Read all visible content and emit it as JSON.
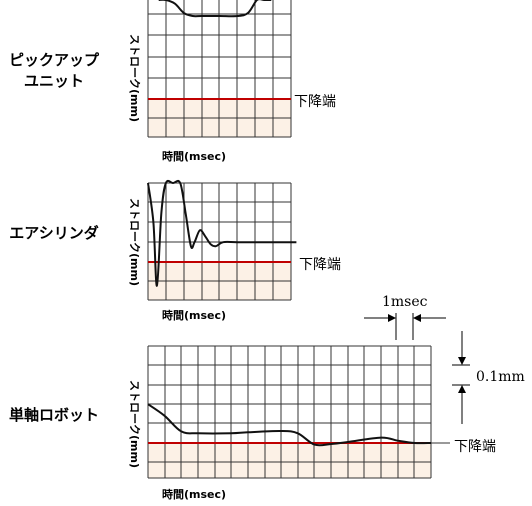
{
  "colors": {
    "grid": "#333333",
    "baseline": "#c00000",
    "band": "#fcf1e6",
    "curve": "#111111"
  },
  "annotation_time": "1msec",
  "annotation_stroke": "0.1mm",
  "chart_data": [
    {
      "type": "line",
      "label": [
        "ピックアップ",
        "ユニット"
      ],
      "ylabel": "ストローク(mm)",
      "xlabel": "時間(msec)",
      "baseline_label": "下降端",
      "grid": true,
      "series": [
        {
          "values": [
            [
              0.6,
              8.2
            ],
            [
              1.0,
              6.2
            ],
            [
              1.5,
              4.6
            ],
            [
              2.0,
              4.15
            ],
            [
              2.5,
              4.0
            ],
            [
              3.0,
              4.0
            ],
            [
              4.0,
              4.0
            ],
            [
              5.0,
              4.0
            ],
            [
              5.6,
              4.15
            ],
            [
              6.1,
              4.8
            ],
            [
              6.5,
              6.2
            ],
            [
              6.9,
              8.2
            ]
          ]
        }
      ]
    },
    {
      "type": "line",
      "label": [
        "エアシリンダ"
      ],
      "ylabel": "ストローク(mm)",
      "xlabel": "時間(msec)",
      "baseline_label": "下降端",
      "grid": true,
      "series": [
        {
          "values": [
            [
              0.0,
              5.0
            ],
            [
              0.3,
              2.0
            ],
            [
              0.5,
              -1.2
            ],
            [
              0.75,
              2.5
            ],
            [
              1.0,
              4.5
            ],
            [
              1.4,
              5.3
            ],
            [
              1.8,
              4.5
            ],
            [
              2.1,
              2.5
            ],
            [
              2.4,
              0.8
            ],
            [
              2.6,
              1.0
            ],
            [
              2.9,
              1.6
            ],
            [
              3.2,
              1.3
            ],
            [
              3.5,
              0.9
            ],
            [
              3.8,
              0.8
            ],
            [
              4.2,
              1.0
            ],
            [
              5.0,
              1.0
            ],
            [
              6.5,
              1.0
            ],
            [
              8.3,
              1.0
            ]
          ]
        }
      ]
    },
    {
      "type": "line",
      "label": [
        "単軸ロボット"
      ],
      "ylabel": "ストローク(mm)",
      "xlabel": "時間(msec)",
      "baseline_label": "下降端",
      "grid": true,
      "series": [
        {
          "values": [
            [
              0.0,
              2.0
            ],
            [
              1.0,
              1.4
            ],
            [
              2.0,
              0.6
            ],
            [
              3.0,
              0.5
            ],
            [
              5.0,
              0.5
            ],
            [
              6.0,
              0.55
            ],
            [
              8.0,
              0.62
            ],
            [
              9.0,
              0.5
            ],
            [
              10.0,
              -0.08
            ],
            [
              11.0,
              -0.05
            ],
            [
              12.0,
              0.05
            ],
            [
              14.0,
              0.28
            ],
            [
              15.0,
              0.12
            ],
            [
              16.0,
              0.0
            ],
            [
              17.0,
              0.0
            ]
          ]
        }
      ]
    }
  ]
}
